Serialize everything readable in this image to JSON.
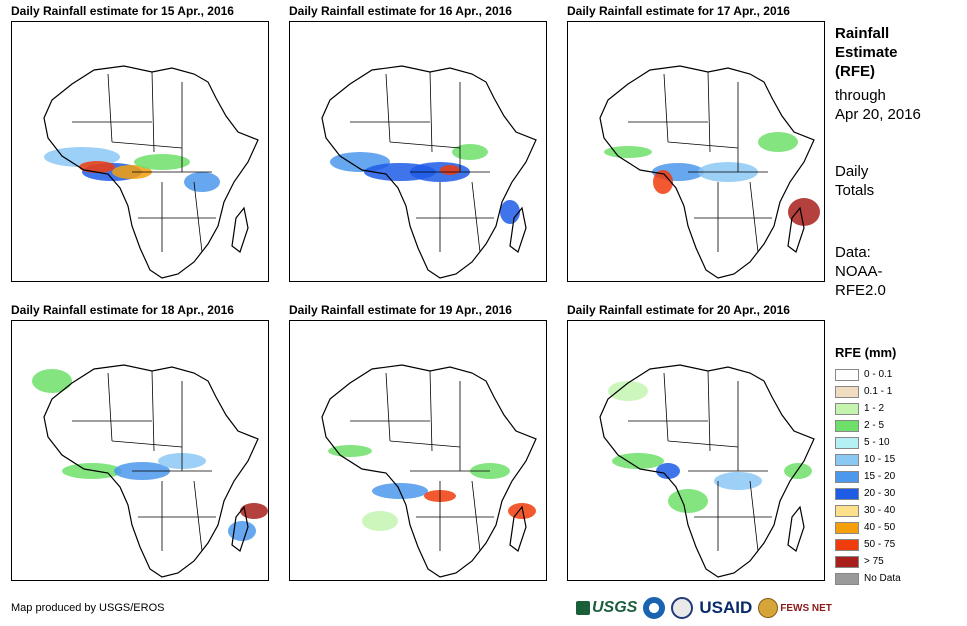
{
  "panels": [
    {
      "title": "Daily Rainfall estimate for 15 Apr., 2016"
    },
    {
      "title": "Daily Rainfall estimate for 16 Apr., 2016"
    },
    {
      "title": "Daily Rainfall estimate for 17 Apr., 2016"
    },
    {
      "title": "Daily Rainfall estimate for 18 Apr., 2016"
    },
    {
      "title": "Daily Rainfall estimate for 19 Apr., 2016"
    },
    {
      "title": "Daily Rainfall estimate for 20 Apr., 2016"
    }
  ],
  "side": {
    "title_lines": [
      "Rainfall",
      "Estimate",
      "(RFE)"
    ],
    "through": "through",
    "date": "Apr 20, 2016",
    "totals": [
      "Daily",
      "Totals"
    ],
    "data_lines": [
      "Data:",
      "NOAA-",
      "RFE2.0"
    ]
  },
  "legend": {
    "title": "RFE (mm)",
    "items": [
      {
        "label": "0 - 0.1",
        "color": "#ffffff"
      },
      {
        "label": "0.1 - 1",
        "color": "#f0dcc0"
      },
      {
        "label": "1 - 2",
        "color": "#c4f4b0"
      },
      {
        "label": "2 - 5",
        "color": "#6ee06a"
      },
      {
        "label": "5 - 10",
        "color": "#b4f0f4"
      },
      {
        "label": "10 - 15",
        "color": "#8cc8f4"
      },
      {
        "label": "15 - 20",
        "color": "#4c98ec"
      },
      {
        "label": "20 - 30",
        "color": "#1e5ce6"
      },
      {
        "label": "30 - 40",
        "color": "#fce08c"
      },
      {
        "label": "40 - 50",
        "color": "#f4a00c"
      },
      {
        "label": "50 - 75",
        "color": "#f03c0c"
      },
      {
        "label": "> 75",
        "color": "#a8201c"
      },
      {
        "label": "No Data",
        "color": "#9a9a9a"
      }
    ]
  },
  "credit": "Map produced by USGS/EROS",
  "logos": {
    "usgs": "USGS",
    "usaid": "USAID",
    "fews": "FEWS NET"
  }
}
